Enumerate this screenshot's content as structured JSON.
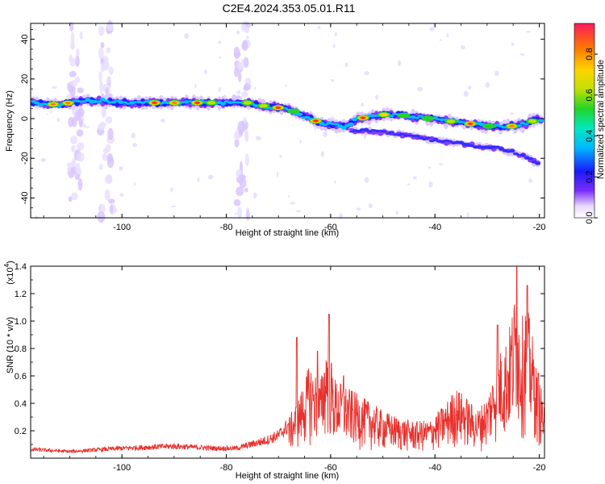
{
  "title": "C2E4.2024.353.05.01.R11",
  "chart_data": [
    {
      "type": "heatmap",
      "xlabel": "Height of straight line (km)",
      "ylabel": "Frequency (Hz)",
      "xlim": [
        -117.5,
        -19
      ],
      "ylim": [
        -50,
        48
      ],
      "xticks": [
        -100,
        -80,
        -60,
        -40,
        -20
      ],
      "yticks": [
        40,
        20,
        0,
        -20,
        -40
      ],
      "colorbar": {
        "label": "Normalized spectral amplitude",
        "range": [
          0,
          0.95
        ],
        "ticks": [
          0.0,
          0.2,
          0.4,
          0.6,
          0.8
        ]
      },
      "ridge": {
        "x": [
          -117,
          -112,
          -108,
          -104,
          -100,
          -96,
          -92,
          -88,
          -84,
          -80,
          -76,
          -72,
          -68,
          -65,
          -62,
          -60,
          -57,
          -55,
          -52,
          -50,
          -47,
          -44,
          -41,
          -38,
          -35,
          -32,
          -29,
          -26,
          -23,
          -21,
          -19
        ],
        "y": [
          8,
          7,
          9,
          9,
          8,
          8,
          8,
          8,
          8,
          8,
          8,
          6,
          5,
          1,
          -2,
          -3,
          -4,
          0,
          1,
          2,
          2,
          1,
          0,
          -1,
          -2,
          -3,
          -4,
          -4,
          -3,
          -1,
          0
        ]
      },
      "secondary_branch": {
        "x": [
          -56,
          -53,
          -50,
          -47,
          -44,
          -40,
          -37,
          -34,
          -31,
          -28,
          -25,
          -22,
          -20
        ],
        "y": [
          -6,
          -6,
          -7,
          -8,
          -9,
          -11,
          -12,
          -13,
          -14,
          -15,
          -17,
          -20,
          -23
        ]
      },
      "grid": false
    },
    {
      "type": "line",
      "xlabel": "Height of straight line (km)",
      "ylabel": "SNR (10 * v/v)",
      "scale_label": "(x10",
      "scale_exp": "4",
      "xlim": [
        -117.5,
        -19
      ],
      "ylim": [
        0,
        1.4
      ],
      "xticks": [
        -100,
        -80,
        -60,
        -40,
        -20
      ],
      "yticks": [
        0.2,
        0.4,
        0.6,
        0.8,
        1.0,
        1.2,
        1.4
      ],
      "color": "#e8302c",
      "envelope": {
        "x": [
          -117.5,
          -110,
          -100,
          -90,
          -82,
          -78,
          -75,
          -72,
          -70,
          -68,
          -66,
          -64,
          -62,
          -60.5,
          -59.5,
          -58,
          -56,
          -54,
          -52,
          -50,
          -47,
          -44,
          -41,
          -38,
          -36,
          -34,
          -32,
          -30,
          -28,
          -26,
          -24.5,
          -23.5,
          -22.5,
          -21.5,
          -20.5,
          -19.5,
          -19
        ],
        "y": [
          0.07,
          0.05,
          0.08,
          0.1,
          0.08,
          0.08,
          0.12,
          0.16,
          0.2,
          0.3,
          0.45,
          0.7,
          0.55,
          0.95,
          0.6,
          0.55,
          0.5,
          0.45,
          0.4,
          0.35,
          0.3,
          0.27,
          0.28,
          0.4,
          0.52,
          0.45,
          0.35,
          0.45,
          0.75,
          0.9,
          1.25,
          1.0,
          1.15,
          0.95,
          0.65,
          0.5,
          0.35
        ]
      },
      "peaks": [
        {
          "x": -66.5,
          "y": 0.88
        },
        {
          "x": -62.5,
          "y": 0.78
        },
        {
          "x": -60.3,
          "y": 1.05
        },
        {
          "x": -57.5,
          "y": 0.6
        },
        {
          "x": -28,
          "y": 0.97
        },
        {
          "x": -24.3,
          "y": 1.4
        },
        {
          "x": -22.3,
          "y": 1.26
        },
        {
          "x": -20.2,
          "y": 0.62
        }
      ],
      "grid": false
    }
  ]
}
